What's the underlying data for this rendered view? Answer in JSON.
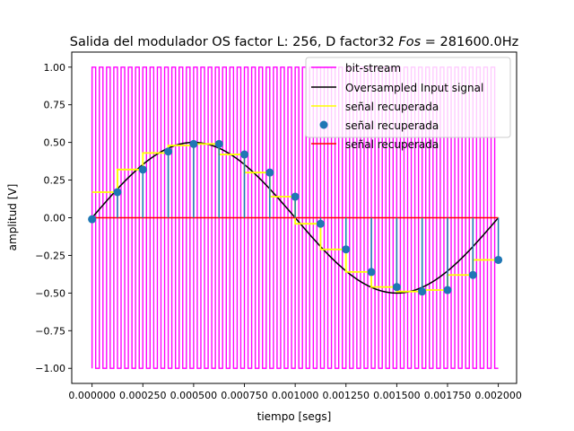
{
  "chart_data": {
    "type": "line",
    "title_prefix": "Salida del modulador OS factor L: 256, D factor32 ",
    "title_italic": "Fos",
    "title_suffix": " = 281600.0Hz",
    "xlabel": "tiempo [segs]",
    "ylabel": "amplitud [V]",
    "xlim": [
      -0.0001,
      0.00209
    ],
    "ylim": [
      -1.1,
      1.1
    ],
    "xticks": [
      0.0,
      0.00025,
      0.0005,
      0.00075,
      0.001,
      0.00125,
      0.0015,
      0.00175,
      0.002
    ],
    "xtick_labels": [
      "0.000000",
      "0.000250",
      "0.000500",
      "0.000750",
      "0.001000",
      "0.001250",
      "0.001500",
      "0.001750",
      "0.002000"
    ],
    "yticks": [
      1.0,
      0.75,
      0.5,
      0.25,
      0.0,
      -0.25,
      -0.5,
      -0.75,
      -1.0
    ],
    "ytick_labels": [
      "1.00",
      "0.75",
      "0.50",
      "0.25",
      "0.00",
      "−0.25",
      "−0.50",
      "−0.75",
      "−1.00"
    ],
    "grid": false,
    "legend_position": "top-right",
    "series": [
      {
        "name": "bit-stream",
        "kind": "step",
        "color": "#ff00ff",
        "x_start": 0.0,
        "x_end": 0.002,
        "levels": [
          1,
          -1
        ],
        "pulses": 56
      },
      {
        "name": "Oversampled Input signal",
        "kind": "line",
        "color": "#000000",
        "amplitude": 0.5,
        "frequency_hz": 500,
        "x_start": 0.0,
        "x_end": 0.002
      },
      {
        "name": "señal recuperada",
        "kind": "step",
        "color": "#ffff00",
        "x": [
          0.0,
          0.000125,
          0.00025,
          0.000375,
          0.0005,
          0.000625,
          0.00075,
          0.000875,
          0.001,
          0.001125,
          0.00125,
          0.001375,
          0.0015,
          0.001625,
          0.00175,
          0.001875,
          0.002
        ],
        "y": [
          0.17,
          0.32,
          0.43,
          0.48,
          0.49,
          0.42,
          0.3,
          0.14,
          -0.04,
          -0.21,
          -0.36,
          -0.46,
          -0.49,
          -0.48,
          -0.38,
          -0.28,
          -0.28
        ]
      },
      {
        "name": "señal recuperada",
        "kind": "stem",
        "color": "#1f77b4",
        "x": [
          0.0,
          0.000125,
          0.00025,
          0.000375,
          0.0005,
          0.000625,
          0.00075,
          0.000875,
          0.001,
          0.001125,
          0.00125,
          0.001375,
          0.0015,
          0.001625,
          0.00175,
          0.001875,
          0.002
        ],
        "y": [
          -0.01,
          0.17,
          0.32,
          0.44,
          0.49,
          0.49,
          0.42,
          0.3,
          0.14,
          -0.04,
          -0.21,
          -0.36,
          -0.46,
          -0.49,
          -0.48,
          -0.38,
          -0.28
        ]
      },
      {
        "name": "señal recuperada",
        "kind": "baseline",
        "color": "#ff0000",
        "y": 0.0
      }
    ]
  }
}
